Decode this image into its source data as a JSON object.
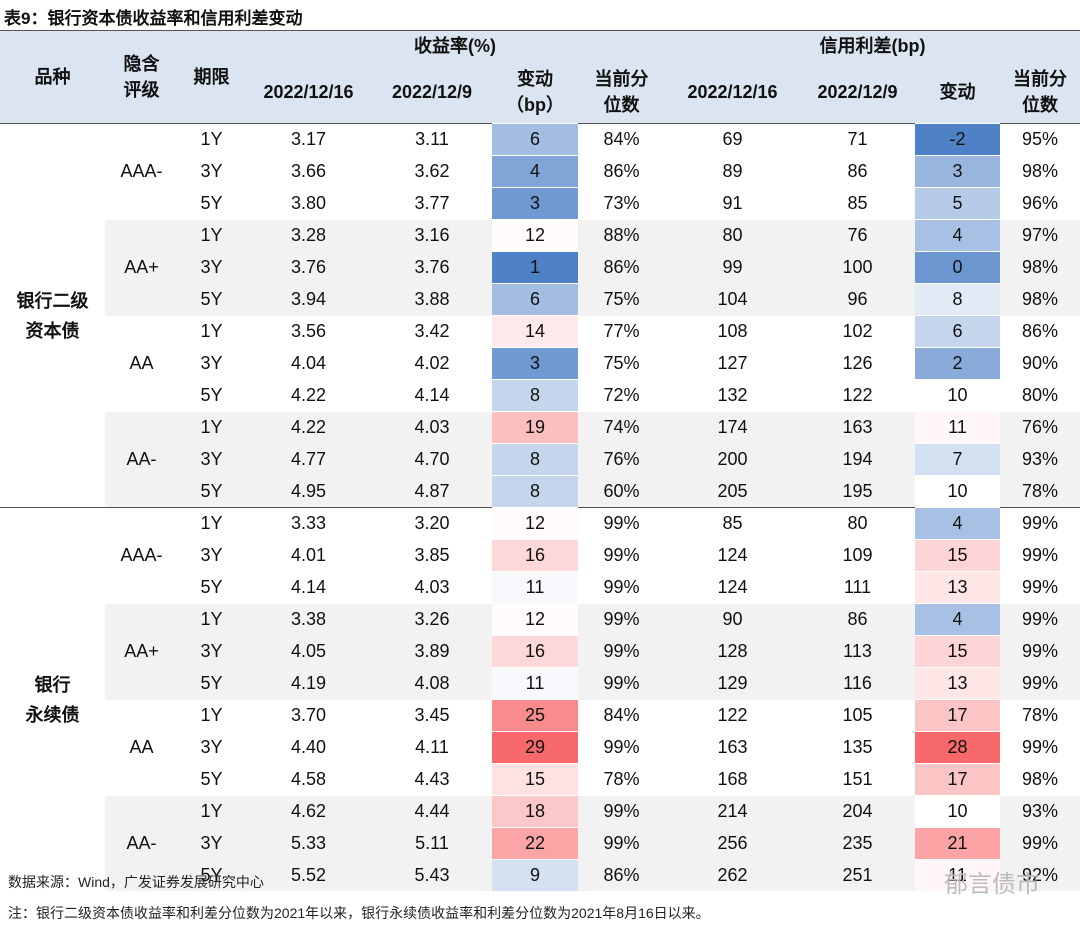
{
  "title": "表9：银行资本债收益率和信用利差变动",
  "header": {
    "product": [
      "品种"
    ],
    "rating": [
      "隐含",
      "评级"
    ],
    "term": [
      "期限"
    ],
    "yield_group": "收益率(%)",
    "spread_group": "信用利差(bp)",
    "yield_cols": [
      [
        "2022/12/16"
      ],
      [
        "2022/12/9"
      ],
      [
        "变动",
        "（bp）"
      ],
      [
        "当前分",
        "位数"
      ]
    ],
    "spread_cols": [
      [
        "2022/12/16"
      ],
      [
        "2022/12/9"
      ],
      [
        "变动"
      ],
      [
        "当前分",
        "位数"
      ]
    ]
  },
  "sections": [
    {
      "name": [
        "银行二级",
        "资本债"
      ],
      "groups": [
        {
          "rating": "AAA-",
          "rows": [
            [
              "1Y",
              "3.17",
              "3.11",
              "6",
              "84%",
              "69",
              "71",
              "-2",
              "95%"
            ],
            [
              "3Y",
              "3.66",
              "3.62",
              "4",
              "86%",
              "89",
              "86",
              "3",
              "98%"
            ],
            [
              "5Y",
              "3.80",
              "3.77",
              "3",
              "73%",
              "91",
              "85",
              "5",
              "96%"
            ]
          ]
        },
        {
          "rating": "AA+",
          "rows": [
            [
              "1Y",
              "3.28",
              "3.16",
              "12",
              "88%",
              "80",
              "76",
              "4",
              "97%"
            ],
            [
              "3Y",
              "3.76",
              "3.76",
              "1",
              "86%",
              "99",
              "100",
              "0",
              "98%"
            ],
            [
              "5Y",
              "3.94",
              "3.88",
              "6",
              "75%",
              "104",
              "96",
              "8",
              "98%"
            ]
          ]
        },
        {
          "rating": "AA",
          "rows": [
            [
              "1Y",
              "3.56",
              "3.42",
              "14",
              "77%",
              "108",
              "102",
              "6",
              "86%"
            ],
            [
              "3Y",
              "4.04",
              "4.02",
              "3",
              "75%",
              "127",
              "126",
              "2",
              "90%"
            ],
            [
              "5Y",
              "4.22",
              "4.14",
              "8",
              "72%",
              "132",
              "122",
              "10",
              "80%"
            ]
          ]
        },
        {
          "rating": "AA-",
          "rows": [
            [
              "1Y",
              "4.22",
              "4.03",
              "19",
              "74%",
              "174",
              "163",
              "11",
              "76%"
            ],
            [
              "3Y",
              "4.77",
              "4.70",
              "8",
              "76%",
              "200",
              "194",
              "7",
              "93%"
            ],
            [
              "5Y",
              "4.95",
              "4.87",
              "8",
              "60%",
              "205",
              "195",
              "10",
              "78%"
            ]
          ]
        }
      ]
    },
    {
      "name": [
        "银行",
        "永续债"
      ],
      "groups": [
        {
          "rating": "AAA-",
          "rows": [
            [
              "1Y",
              "3.33",
              "3.20",
              "12",
              "99%",
              "85",
              "80",
              "4",
              "99%"
            ],
            [
              "3Y",
              "4.01",
              "3.85",
              "16",
              "99%",
              "124",
              "109",
              "15",
              "99%"
            ],
            [
              "5Y",
              "4.14",
              "4.03",
              "11",
              "99%",
              "124",
              "111",
              "13",
              "99%"
            ]
          ]
        },
        {
          "rating": "AA+",
          "rows": [
            [
              "1Y",
              "3.38",
              "3.26",
              "12",
              "99%",
              "90",
              "86",
              "4",
              "99%"
            ],
            [
              "3Y",
              "4.05",
              "3.89",
              "16",
              "99%",
              "128",
              "113",
              "15",
              "99%"
            ],
            [
              "5Y",
              "4.19",
              "4.08",
              "11",
              "99%",
              "129",
              "116",
              "13",
              "99%"
            ]
          ]
        },
        {
          "rating": "AA",
          "rows": [
            [
              "1Y",
              "3.70",
              "3.45",
              "25",
              "84%",
              "122",
              "105",
              "17",
              "78%"
            ],
            [
              "3Y",
              "4.40",
              "4.11",
              "29",
              "99%",
              "163",
              "135",
              "28",
              "99%"
            ],
            [
              "5Y",
              "4.58",
              "4.43",
              "15",
              "78%",
              "168",
              "151",
              "17",
              "98%"
            ]
          ]
        },
        {
          "rating": "AA-",
          "rows": [
            [
              "1Y",
              "4.62",
              "4.44",
              "18",
              "99%",
              "214",
              "204",
              "10",
              "93%"
            ],
            [
              "3Y",
              "5.33",
              "5.11",
              "22",
              "99%",
              "256",
              "235",
              "21",
              "99%"
            ],
            [
              "5Y",
              "5.52",
              "5.43",
              "9",
              "86%",
              "262",
              "251",
              "11",
              "92%"
            ]
          ]
        }
      ]
    }
  ],
  "source": "数据来源：Wind，广发证券发展研究中心",
  "watermark": "郁言债市",
  "note": "注：银行二级资本债收益率和利差分位数为2021年以来，银行永续债收益率和利差分位数为2021年8月16日以来。"
}
